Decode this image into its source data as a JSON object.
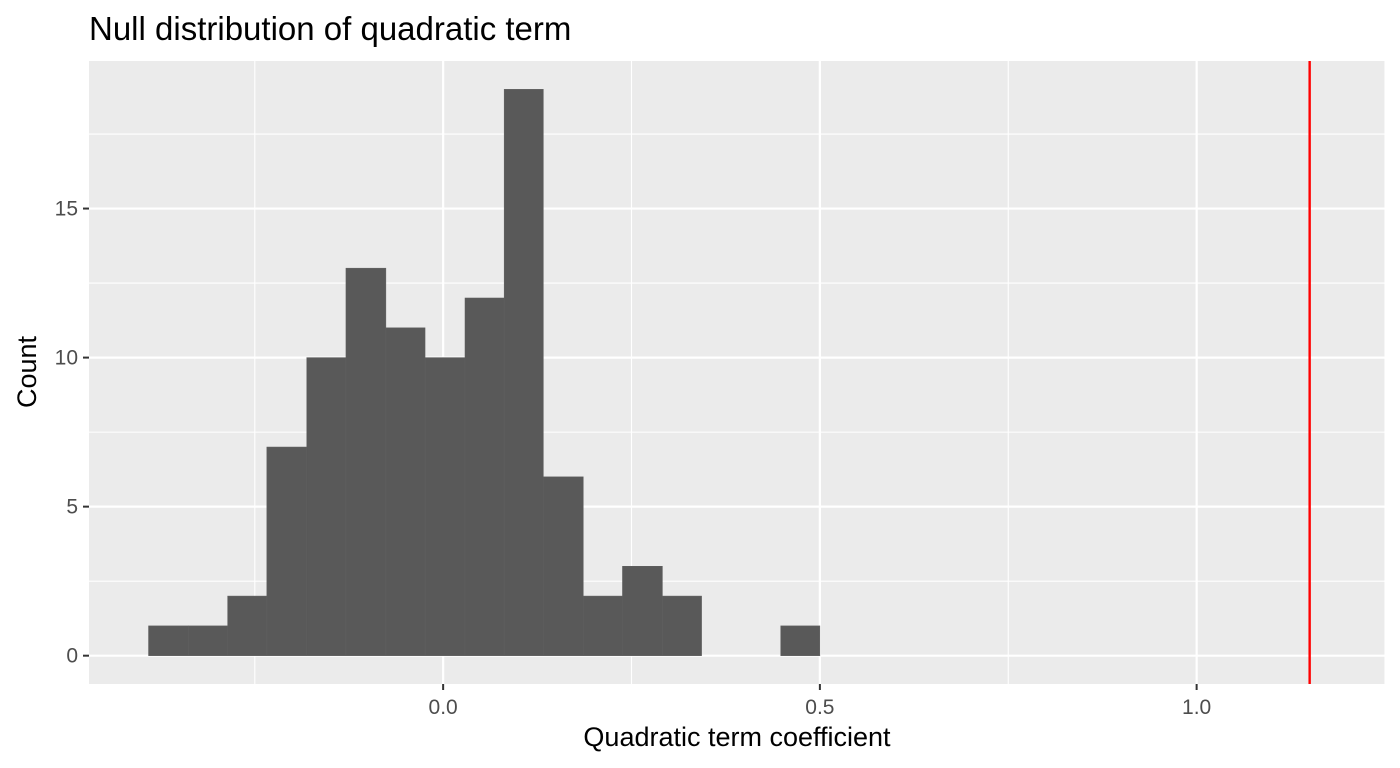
{
  "chart_data": {
    "type": "bar",
    "subtype": "histogram",
    "title": "Null distribution of quadratic term",
    "xlabel": "Quadratic term coefficient",
    "ylabel": "Count",
    "bin_width": 0.0524,
    "bins": [
      {
        "x_min": -0.391,
        "x_max": -0.338,
        "count": 1
      },
      {
        "x_min": -0.338,
        "x_max": -0.286,
        "count": 1
      },
      {
        "x_min": -0.286,
        "x_max": -0.234,
        "count": 2
      },
      {
        "x_min": -0.234,
        "x_max": -0.181,
        "count": 7
      },
      {
        "x_min": -0.181,
        "x_max": -0.129,
        "count": 10
      },
      {
        "x_min": -0.129,
        "x_max": -0.076,
        "count": 13
      },
      {
        "x_min": -0.076,
        "x_max": -0.024,
        "count": 11
      },
      {
        "x_min": -0.024,
        "x_max": 0.029,
        "count": 10
      },
      {
        "x_min": 0.029,
        "x_max": 0.081,
        "count": 12
      },
      {
        "x_min": 0.081,
        "x_max": 0.133,
        "count": 19
      },
      {
        "x_min": 0.133,
        "x_max": 0.186,
        "count": 6
      },
      {
        "x_min": 0.186,
        "x_max": 0.238,
        "count": 2
      },
      {
        "x_min": 0.238,
        "x_max": 0.291,
        "count": 3
      },
      {
        "x_min": 0.291,
        "x_max": 0.343,
        "count": 2
      },
      {
        "x_min": 0.448,
        "x_max": 0.5,
        "count": 1
      }
    ],
    "reference_line": {
      "x": 1.15,
      "color": "#ff0000"
    },
    "xlim": [
      -0.47,
      1.25
    ],
    "ylim": [
      -0.95,
      19.95
    ],
    "x_ticks": [
      {
        "value": 0.0,
        "label": "0.0"
      },
      {
        "value": 0.5,
        "label": "0.5"
      },
      {
        "value": 1.0,
        "label": "1.0"
      }
    ],
    "y_ticks": [
      {
        "value": 0,
        "label": "0"
      },
      {
        "value": 5,
        "label": "5"
      },
      {
        "value": 10,
        "label": "10"
      },
      {
        "value": 15,
        "label": "15"
      }
    ],
    "x_minor_ticks": [
      -0.25,
      0.25,
      0.75,
      1.25
    ],
    "y_minor_ticks": [
      2.5,
      7.5,
      12.5,
      17.5
    ],
    "grid": true,
    "colors": {
      "panel_background": "#ebebeb",
      "grid": "#ffffff",
      "bar_fill": "#595959",
      "tick": "#333333",
      "tick_label": "#4d4d4d"
    }
  }
}
